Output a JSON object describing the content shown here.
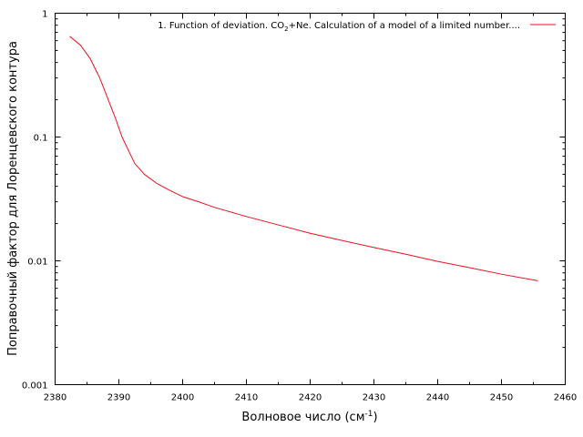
{
  "chart_data": {
    "type": "line",
    "title": "",
    "xlabel": "Волновое число (см",
    "xlabel_sup": "-1",
    "xlabel_close": ")",
    "ylabel": "Поправочный фактор для Лоренцевского контура",
    "xlim": [
      2380,
      2460
    ],
    "ylim": [
      0.001,
      1
    ],
    "y_scale": "log",
    "grid": false,
    "legend_position": "top-right",
    "x_ticks": [
      "2380",
      "2390",
      "2400",
      "2410",
      "2420",
      "2430",
      "2440",
      "2450",
      "2460"
    ],
    "y_ticks": [
      "0.001",
      "0.01",
      "0.1",
      "1"
    ],
    "series": [
      {
        "name": "1. Function of deviation. CO2+Ne. Calculation of a model of a limited number...",
        "legend_parts": {
          "before": "1. Function of deviation. CO",
          "sub": "2",
          "after": "+Ne. Calculation of a model of a limited number...."
        },
        "color": "#e8121e",
        "x": [
          2382.3,
          2384.0,
          2385.5,
          2387.0,
          2388.5,
          2389.5,
          2390.5,
          2391.5,
          2392.5,
          2394.0,
          2396.0,
          2398.0,
          2400.0,
          2402.5,
          2405.0,
          2410.0,
          2415.0,
          2420.0,
          2425.0,
          2430.0,
          2435.0,
          2440.0,
          2445.0,
          2450.0,
          2455.7
        ],
        "y": [
          0.65,
          0.55,
          0.43,
          0.3,
          0.19,
          0.14,
          0.1,
          0.078,
          0.061,
          0.05,
          0.042,
          0.037,
          0.033,
          0.03,
          0.027,
          0.0228,
          0.0195,
          0.0167,
          0.0146,
          0.0128,
          0.0113,
          0.0099,
          0.0088,
          0.0078,
          0.0069
        ]
      }
    ]
  }
}
